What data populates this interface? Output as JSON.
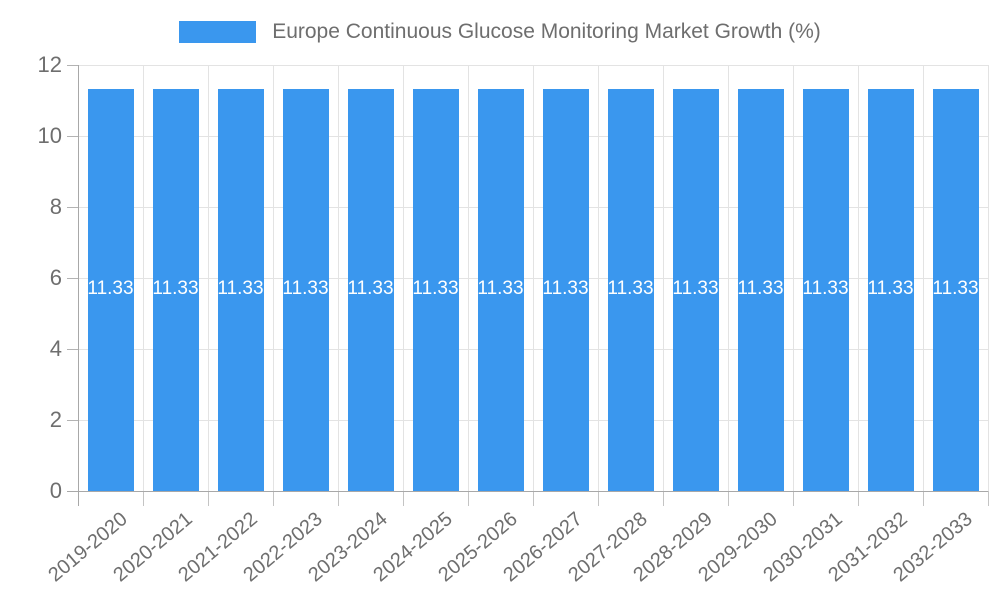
{
  "legend": {
    "label": "Europe Continuous Glucose Monitoring Market Growth (%)"
  },
  "colors": {
    "bar": "#3a97ee",
    "grid": "#e3e3e3",
    "axis": "#a8a8a8",
    "tick": "#bdbdbd",
    "text": "#6e6e6e",
    "bar_label": "#ffffff",
    "background": "#ffffff"
  },
  "chart_data": {
    "type": "bar",
    "title": "Europe Continuous Glucose Monitoring Market Growth (%)",
    "categories": [
      "2019-2020",
      "2020-2021",
      "2021-2022",
      "2022-2023",
      "2023-2024",
      "2024-2025",
      "2025-2026",
      "2026-2027",
      "2027-2028",
      "2028-2029",
      "2029-2030",
      "2030-2031",
      "2031-2032",
      "2032-2033"
    ],
    "values": [
      11.33,
      11.33,
      11.33,
      11.33,
      11.33,
      11.33,
      11.33,
      11.33,
      11.33,
      11.33,
      11.33,
      11.33,
      11.33,
      11.33
    ],
    "value_labels": [
      "11.33",
      "11.33",
      "11.33",
      "11.33",
      "11.33",
      "11.33",
      "11.33",
      "11.33",
      "11.33",
      "11.33",
      "11.33",
      "11.33",
      "11.33",
      "11.33"
    ],
    "xlabel": "",
    "ylabel": "",
    "ylim": [
      0,
      12
    ],
    "yticks": [
      0,
      2,
      4,
      6,
      8,
      10,
      12
    ],
    "grid": true,
    "legend_position": "top",
    "bar_label_position": "center"
  }
}
